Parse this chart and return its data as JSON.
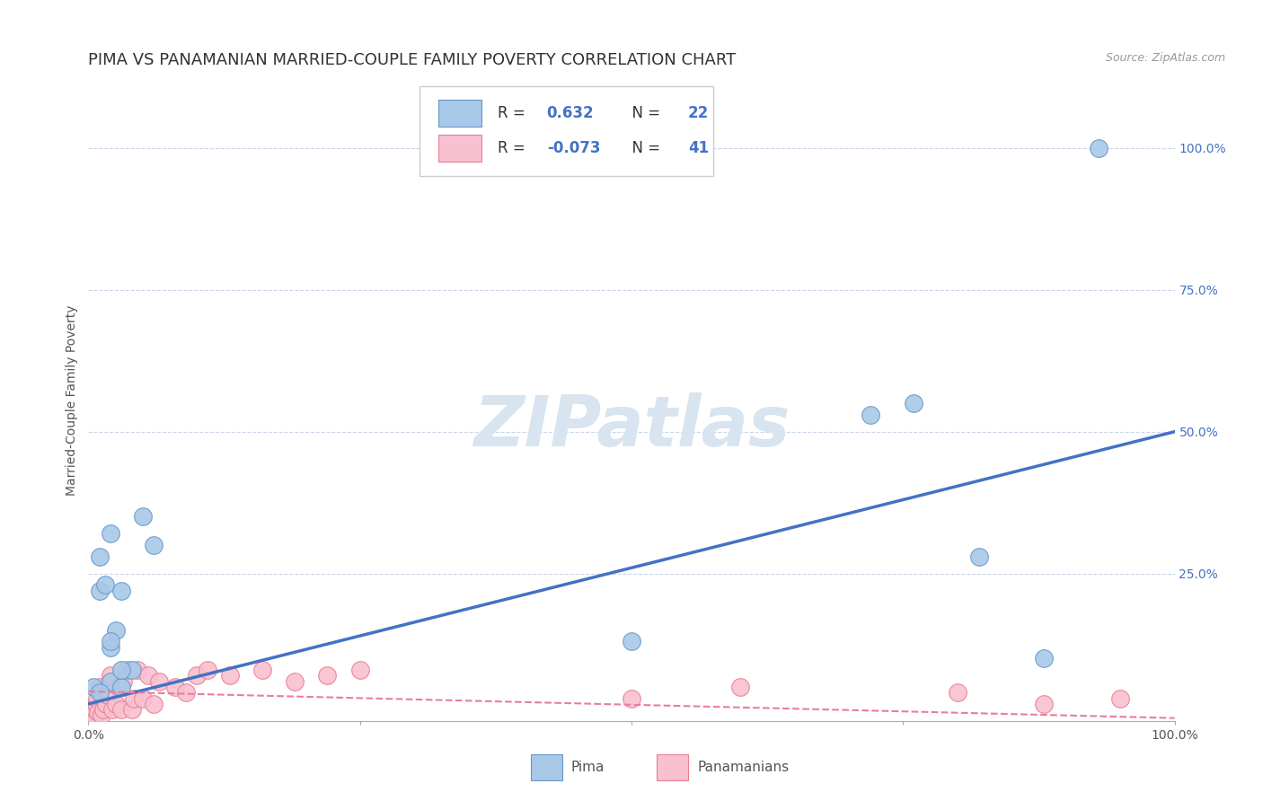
{
  "title": "PIMA VS PANAMANIAN MARRIED-COUPLE FAMILY POVERTY CORRELATION CHART",
  "source": "Source: ZipAtlas.com",
  "ylabel": "Married-Couple Family Poverty",
  "xlim": [
    0.0,
    1.0
  ],
  "ylim": [
    -0.01,
    1.12
  ],
  "xticks": [
    0.0,
    0.25,
    0.5,
    0.75,
    1.0
  ],
  "yticks": [
    0.0,
    0.25,
    0.5,
    0.75,
    1.0
  ],
  "right_yticklabels": [
    "",
    "25.0%",
    "50.0%",
    "75.0%",
    "100.0%"
  ],
  "xticklabels_bottom": [
    "0.0%",
    "",
    "",
    "",
    "100.0%"
  ],
  "pima_color": "#a8c8e8",
  "pima_edge_color": "#6898c8",
  "panamanians_color": "#f8c0d0",
  "panamanians_edge_color": "#e88090",
  "pima_R": 0.632,
  "pima_N": 22,
  "panamanians_R": -0.073,
  "panamanians_N": 41,
  "pima_line_color": "#4472c4",
  "panamanians_line_color": "#e87da0",
  "watermark": "ZIPatlas",
  "watermark_color": "#d8e4f0",
  "legend_R_color": "#4472c4",
  "legend_N_color": "#4472c4",
  "pima_points_x": [
    0.005,
    0.01,
    0.01,
    0.015,
    0.02,
    0.02,
    0.02,
    0.025,
    0.03,
    0.03,
    0.04,
    0.05,
    0.06,
    0.01,
    0.02,
    0.03,
    0.5,
    0.72,
    0.76,
    0.82,
    0.88,
    0.93
  ],
  "pima_points_y": [
    0.05,
    0.28,
    0.22,
    0.23,
    0.32,
    0.06,
    0.12,
    0.15,
    0.22,
    0.05,
    0.08,
    0.35,
    0.3,
    0.04,
    0.13,
    0.08,
    0.13,
    0.53,
    0.55,
    0.28,
    0.1,
    1.0
  ],
  "pana_points_x": [
    0.002,
    0.003,
    0.004,
    0.005,
    0.006,
    0.007,
    0.008,
    0.009,
    0.01,
    0.012,
    0.014,
    0.016,
    0.018,
    0.02,
    0.022,
    0.025,
    0.028,
    0.03,
    0.032,
    0.035,
    0.04,
    0.042,
    0.045,
    0.05,
    0.055,
    0.06,
    0.065,
    0.08,
    0.09,
    0.1,
    0.11,
    0.13,
    0.16,
    0.19,
    0.22,
    0.25,
    0.5,
    0.6,
    0.8,
    0.88,
    0.95
  ],
  "pana_points_y": [
    0.0,
    0.005,
    0.01,
    0.0,
    0.01,
    0.02,
    0.03,
    0.005,
    0.05,
    0.0,
    0.01,
    0.02,
    0.035,
    0.07,
    0.01,
    0.02,
    0.05,
    0.01,
    0.06,
    0.08,
    0.01,
    0.03,
    0.08,
    0.03,
    0.07,
    0.02,
    0.06,
    0.05,
    0.04,
    0.07,
    0.08,
    0.07,
    0.08,
    0.06,
    0.07,
    0.08,
    0.03,
    0.05,
    0.04,
    0.02,
    0.03
  ],
  "background_color": "#ffffff",
  "grid_color": "#c8d4e8",
  "title_fontsize": 13,
  "axis_label_fontsize": 10,
  "tick_fontsize": 10,
  "legend_fontsize": 12
}
